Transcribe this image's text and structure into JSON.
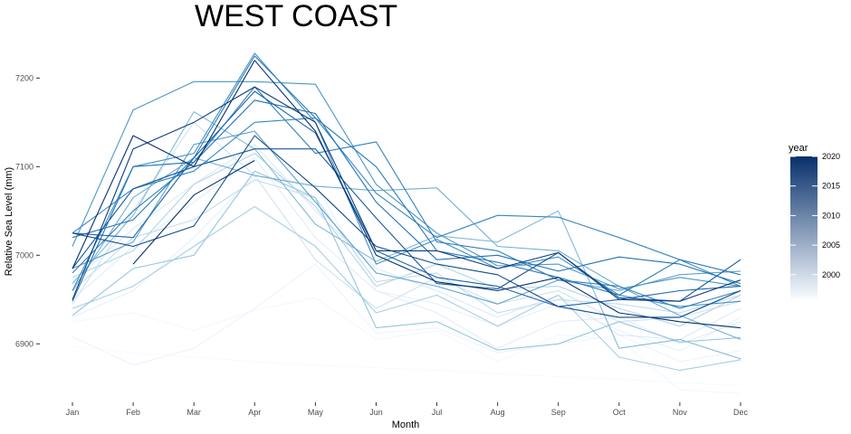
{
  "chart_data": {
    "type": "line",
    "title": "WEST COAST",
    "xlabel": "Month",
    "ylabel": "Relative Sea Level (mm)",
    "categories": [
      "Jan",
      "Feb",
      "Mar",
      "Apr",
      "May",
      "Jun",
      "Jul",
      "Aug",
      "Sep",
      "Oct",
      "Nov",
      "Dec"
    ],
    "yticks": [
      6900,
      7000,
      7100,
      7200
    ],
    "ylim": [
      6838,
      7232
    ],
    "grid": false,
    "legend": {
      "title": "year",
      "position": "right",
      "min": 1996,
      "max": 2020,
      "ticks": [
        2000,
        2005,
        2010,
        2015,
        2020
      ],
      "low_color": "#f7fbff",
      "high_color": "#08306b"
    },
    "series": [
      {
        "year": 1996,
        "values": [
          6897,
          6890,
          6885,
          6880,
          6876,
          6873,
          6870,
          6866,
          6863,
          6860,
          6856,
          6853
        ]
      },
      {
        "year": 1997,
        "values": [
          6925,
          6935,
          6915,
          6938,
          6952,
          6905,
          6915,
          6880,
          6910,
          6905,
          6848,
          6844
        ]
      },
      {
        "year": 1998,
        "values": [
          6908,
          6876,
          6895,
          6940,
          6990,
          6912,
          6918,
          6890,
          6900,
          6910,
          6880,
          6892
        ]
      },
      {
        "year": 1999,
        "values": [
          6930,
          6960,
          7020,
          7090,
          7080,
          6960,
          6945,
          6920,
          6945,
          6915,
          6892,
          6930
        ]
      },
      {
        "year": 2000,
        "values": [
          6950,
          7010,
          7060,
          7110,
          7020,
          6960,
          6935,
          6895,
          6925,
          6930,
          6900,
          6925
        ]
      },
      {
        "year": 2001,
        "values": [
          6970,
          7030,
          7080,
          7125,
          7050,
          6985,
          6960,
          6930,
          6955,
          6910,
          6905,
          6940
        ]
      },
      {
        "year": 2002,
        "values": [
          6945,
          7050,
          7150,
          7090,
          6995,
          6940,
          6975,
          6945,
          6960,
          6925,
          6930,
          6948
        ]
      },
      {
        "year": 2003,
        "values": [
          6960,
          7020,
          7040,
          7085,
          7065,
          6970,
          6980,
          6935,
          6950,
          6945,
          6935,
          6955
        ]
      },
      {
        "year": 2004,
        "values": [
          6975,
          7005,
          7080,
          7115,
          7055,
          6965,
          6990,
          6962,
          6965,
          6940,
          6920,
          6955
        ]
      },
      {
        "year": 2005,
        "values": [
          6940,
          6965,
          7010,
          7055,
          7010,
          6935,
          6955,
          6920,
          6955,
          6885,
          6870,
          6882
        ]
      },
      {
        "year": 2006,
        "values": [
          6932,
          6985,
          7000,
          7095,
          7065,
          6918,
          6925,
          6893,
          6900,
          6925,
          6902,
          6907
        ]
      },
      {
        "year": 2007,
        "values": [
          6968,
          7045,
          7162,
          7120,
          7035,
          6993,
          7022,
          7015,
          7050,
          6895,
          6905,
          6883
        ]
      },
      {
        "year": 2008,
        "values": [
          6960,
          7065,
          7110,
          7090,
          7078,
          7073,
          7076,
          7010,
          7005,
          6965,
          6932,
          6905
        ]
      },
      {
        "year": 2009,
        "values": [
          6985,
          7015,
          7125,
          7140,
          7060,
          6980,
          6965,
          6945,
          6972,
          6960,
          6978,
          6982
        ]
      },
      {
        "year": 2010,
        "values": [
          7010,
          7164,
          7196,
          7196,
          7193,
          7080,
          7025,
          6988,
          6990,
          6962,
          6975,
          6965
        ]
      },
      {
        "year": 2011,
        "values": [
          6960,
          7100,
          7115,
          7228,
          7150,
          6990,
          7018,
          6985,
          6998,
          6955,
          6942,
          6948
        ]
      },
      {
        "year": 2012,
        "values": [
          7025,
          7075,
          7095,
          7150,
          7155,
          7070,
          7020,
          7045,
          7043,
          7020,
          6995,
          6965
        ]
      },
      {
        "year": 2013,
        "values": [
          6980,
          7050,
          7105,
          7190,
          7115,
          7128,
          7015,
          7005,
          6972,
          6965,
          6940,
          6960
        ]
      },
      {
        "year": 2014,
        "values": [
          7020,
          7040,
          7110,
          7225,
          7155,
          7100,
          7005,
          6992,
          6975,
          6955,
          6995,
          6978
        ]
      },
      {
        "year": 2015,
        "values": [
          6948,
          7100,
          7105,
          7175,
          7160,
          7060,
          6995,
          7000,
          6982,
          6998,
          6990,
          6968
        ]
      },
      {
        "year": 2016,
        "values": [
          7025,
          7020,
          7110,
          7185,
          7138,
          7005,
          6975,
          6965,
          6942,
          6950,
          6960,
          6965
        ]
      },
      {
        "year": 2017,
        "values": [
          6985,
          7075,
          7100,
          7120,
          7120,
          7042,
          6968,
          6962,
          7003,
          6952,
          6948,
          6995
        ]
      },
      {
        "year": 2018,
        "values": [
          7025,
          7010,
          7033,
          7135,
          7076,
          7010,
          6990,
          6978,
          6942,
          6930,
          6930,
          6960
        ]
      },
      {
        "year": 2019,
        "values": [
          6950,
          7120,
          7150,
          7190,
          7150,
          7005,
          7005,
          6985,
          7003,
          6950,
          6948,
          6972
        ]
      },
      {
        "year": 2020,
        "values": [
          6985,
          7135,
          7100,
          7220,
          7140,
          7000,
          6970,
          6960,
          6975,
          6935,
          6925,
          6918
        ]
      },
      {
        "year": 2021,
        "values": [
          null,
          6990,
          7068,
          7107,
          null,
          null,
          null,
          null,
          null,
          null,
          null,
          null
        ]
      }
    ]
  }
}
